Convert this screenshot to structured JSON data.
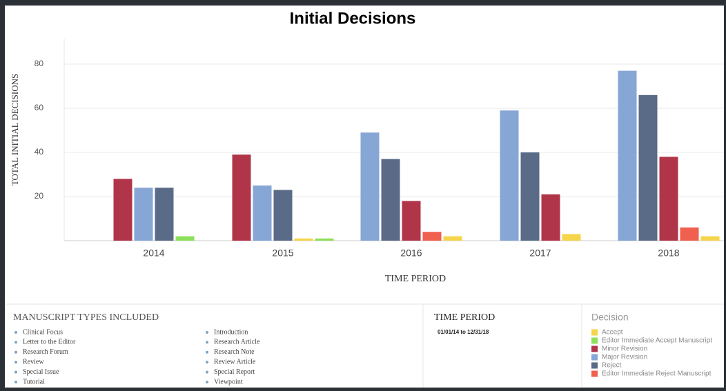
{
  "chart_data": {
    "type": "bar",
    "title": "Initial Decisions",
    "y_label": "TOTAL INITIAL DECISIONS",
    "x_label": "TIME PERIOD",
    "categories": [
      "2014",
      "2015",
      "2016",
      "2017",
      "2018"
    ],
    "series": [
      {
        "name": "Accept",
        "color": "#f7d54a",
        "values": [
          null,
          1,
          2,
          3,
          2
        ]
      },
      {
        "name": "Editor Immediate Accept Manuscript",
        "color": "#8de05a",
        "values": [
          2,
          1,
          null,
          null,
          null
        ]
      },
      {
        "name": "Minor Revision",
        "color": "#b03549",
        "values": [
          28,
          39,
          18,
          21,
          38
        ]
      },
      {
        "name": "Major Revision",
        "color": "#86a6d6",
        "values": [
          24,
          25,
          49,
          59,
          77
        ]
      },
      {
        "name": "Reject",
        "color": "#5a6b87",
        "values": [
          24,
          23,
          37,
          40,
          66
        ]
      },
      {
        "name": "Editor Immediate Reject Manuscript",
        "color": "#f0604f",
        "values": [
          null,
          null,
          4,
          null,
          6
        ]
      }
    ],
    "ylim": [
      0,
      90
    ],
    "yticks": [
      20,
      40,
      60,
      80
    ],
    "grid": true,
    "legend_title": "Decision"
  },
  "manuscript_panel": {
    "title": "MANUSCRIPT TYPES INCLUDED",
    "columns": [
      [
        "Clinical Focus",
        "Letter to the Editor",
        "Research Forum",
        "Review",
        "Special Issue",
        "Tutorial"
      ],
      [
        "Introduction",
        "Research Article",
        "Research Note",
        "Review Article",
        "Special Report",
        "Viewpoint"
      ]
    ]
  },
  "time_panel": {
    "title": "TIME PERIOD",
    "range": "01/01/14 to 12/31/18"
  }
}
